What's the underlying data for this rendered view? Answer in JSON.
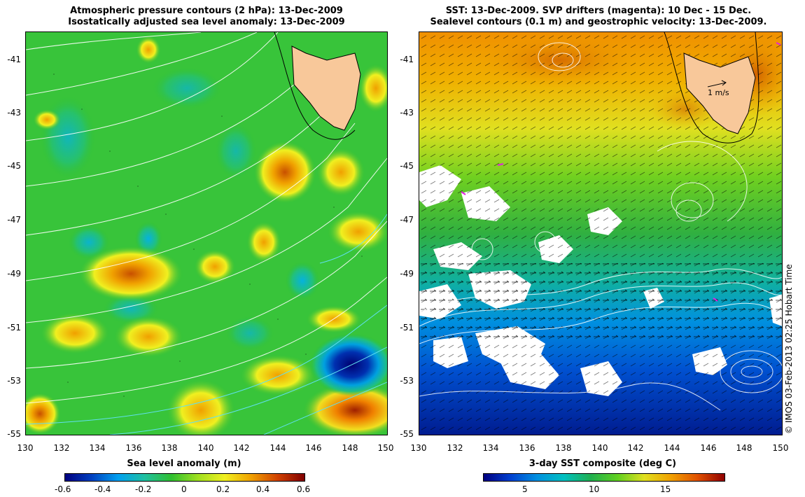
{
  "left_panel": {
    "title_line1": "Atmospheric pressure contours (2 hPa): 13-Dec-2009",
    "title_line2": "Isostatically adjusted sea level anomaly: 13-Dec-2009",
    "y_ticks": [
      "-41",
      "-43",
      "-45",
      "-47",
      "-49",
      "-51",
      "-53",
      "-55"
    ],
    "x_ticks": [
      "130",
      "132",
      "134",
      "136",
      "138",
      "140",
      "142",
      "144",
      "146",
      "148",
      "150"
    ],
    "colorbar_label": "Sea level anomaly (m)",
    "colorbar_ticks": [
      "-0.6",
      "-0.4",
      "-0.2",
      "0",
      "0.2",
      "0.4",
      "0.6"
    ]
  },
  "right_panel": {
    "title_line1": "SST: 13-Dec-2009. SVP drifters (magenta): 10 Dec - 15 Dec.",
    "title_line2": "Sealevel contours (0.1 m) and geostrophic velocity: 13-Dec-2009.",
    "y_ticks": [
      "-41",
      "-43",
      "-45",
      "-47",
      "-49",
      "-51",
      "-53",
      "-55"
    ],
    "x_ticks": [
      "130",
      "132",
      "134",
      "136",
      "138",
      "140",
      "142",
      "144",
      "146",
      "148",
      "150"
    ],
    "velocity_key": "1 m/s",
    "colorbar_label": "3-day SST composite (deg C)",
    "colorbar_ticks": [
      "5",
      "10",
      "15"
    ]
  },
  "credit": "© IMOS 03-Feb-2013 02:25 Hobart Time",
  "colors": {
    "land": "#f8c89a",
    "sla_colormap": [
      "#000080",
      "#0050d0",
      "#00b0f0",
      "#20c080",
      "#30c030",
      "#a0e020",
      "#f0f020",
      "#f0a000",
      "#d04000",
      "#800000"
    ],
    "sst_colormap": [
      "#000080",
      "#0040d0",
      "#0090e0",
      "#00c0c0",
      "#20b050",
      "#60d020",
      "#e0e020",
      "#f0a000",
      "#e05000",
      "#900000"
    ]
  }
}
